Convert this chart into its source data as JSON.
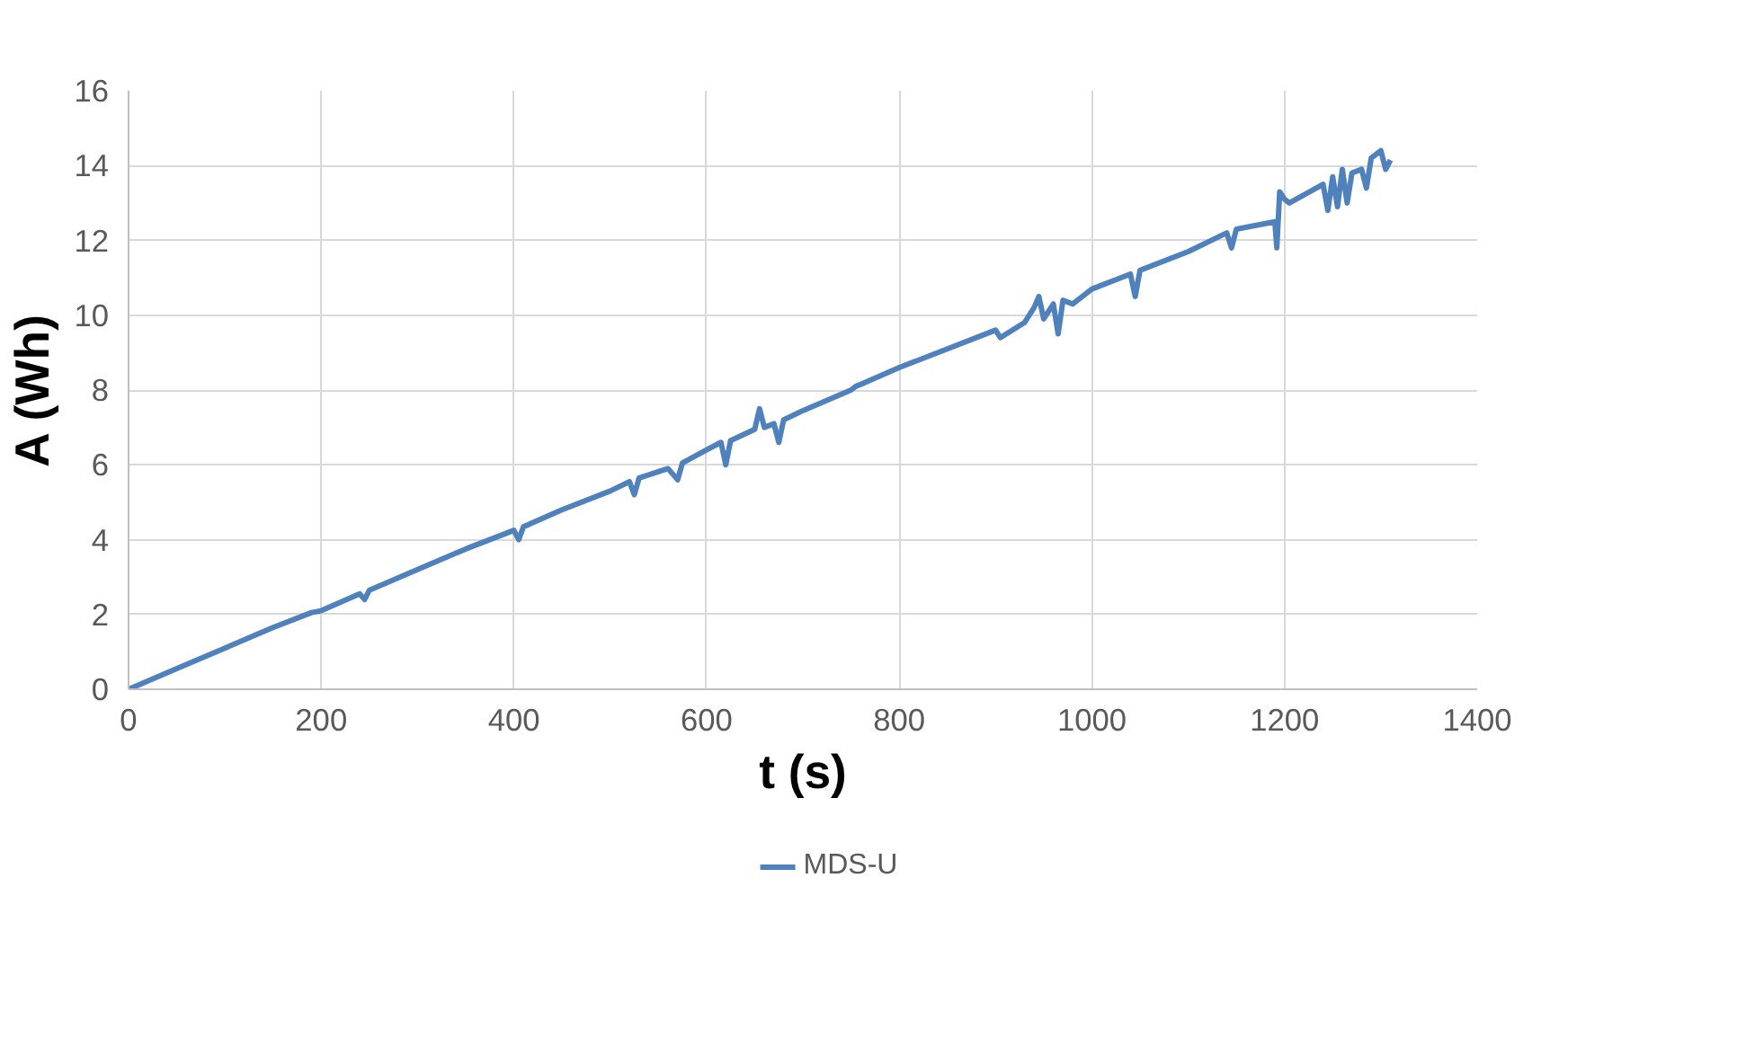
{
  "chart_data": {
    "type": "line",
    "xlabel": "t (s)",
    "ylabel": "A (Wh)",
    "x": [
      0,
      50,
      100,
      150,
      190,
      200,
      240,
      245,
      250,
      300,
      350,
      400,
      405,
      410,
      415,
      450,
      500,
      520,
      525,
      530,
      560,
      570,
      575,
      600,
      615,
      620,
      625,
      650,
      655,
      660,
      670,
      675,
      680,
      700,
      750,
      755,
      760,
      800,
      850,
      900,
      905,
      930,
      940,
      945,
      950,
      960,
      965,
      970,
      980,
      1000,
      1040,
      1045,
      1050,
      1100,
      1140,
      1145,
      1150,
      1190,
      1192,
      1195,
      1200,
      1205,
      1240,
      1245,
      1250,
      1255,
      1260,
      1265,
      1270,
      1280,
      1285,
      1290,
      1300,
      1305,
      1310
    ],
    "series": [
      {
        "name": "MDS-U",
        "color": "#4f81bd",
        "values": [
          0,
          0.55,
          1.1,
          1.65,
          2.05,
          2.1,
          2.55,
          2.4,
          2.65,
          3.2,
          3.75,
          4.25,
          4.0,
          4.35,
          4.4,
          4.8,
          5.3,
          5.55,
          5.2,
          5.65,
          5.9,
          5.6,
          6.05,
          6.4,
          6.6,
          6.0,
          6.65,
          6.95,
          7.5,
          7.0,
          7.1,
          6.6,
          7.2,
          7.45,
          8.0,
          8.1,
          8.15,
          8.6,
          9.1,
          9.6,
          9.4,
          9.8,
          10.2,
          10.5,
          9.9,
          10.3,
          9.5,
          10.4,
          10.3,
          10.7,
          11.1,
          10.5,
          11.2,
          11.7,
          12.2,
          11.8,
          12.3,
          12.5,
          11.8,
          13.3,
          13.1,
          13.0,
          13.5,
          12.8,
          13.7,
          12.9,
          13.9,
          13.0,
          13.8,
          13.9,
          13.4,
          14.2,
          14.4,
          13.9,
          14.15
        ]
      }
    ],
    "xlim": [
      0,
      1400
    ],
    "xticks": [
      0,
      200,
      400,
      600,
      800,
      1000,
      1200,
      1400
    ],
    "ylim": [
      0,
      16
    ],
    "yticks": [
      0,
      2,
      4,
      6,
      8,
      10,
      12,
      14,
      16
    ],
    "grid": true,
    "legend": "bottom",
    "marker": "none",
    "line_style": "solid"
  }
}
